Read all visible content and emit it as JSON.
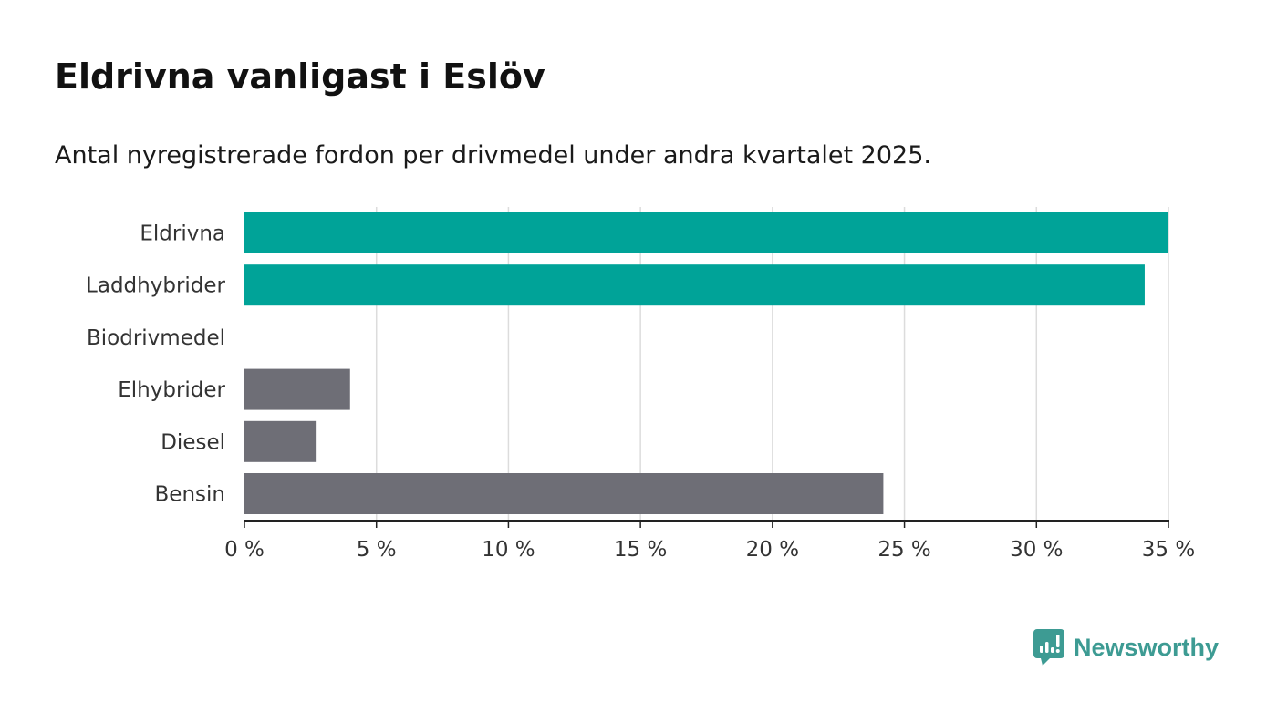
{
  "header": {
    "title": "Eldrivna vanligast i Eslöv",
    "subtitle": "Antal nyregistrerade fordon per drivmedel under andra kvartalet 2025."
  },
  "brand": {
    "name": "Newsworthy",
    "icon": "newsworthy-logo-icon",
    "color": "#3d9b93"
  },
  "chart_data": {
    "type": "bar",
    "orientation": "horizontal",
    "categories": [
      "Eldrivna",
      "Laddhybrider",
      "Biodrivmedel",
      "Elhybrider",
      "Diesel",
      "Bensin"
    ],
    "values": [
      35,
      34.1,
      0,
      4.0,
      2.7,
      24.2
    ],
    "colors": [
      "#00a398",
      "#00a398",
      "#6e6e76",
      "#6e6e76",
      "#6e6e76",
      "#6e6e76"
    ],
    "xlim": [
      0,
      35
    ],
    "xticks": [
      0,
      5,
      10,
      15,
      20,
      25,
      30,
      35
    ],
    "xtick_labels": [
      "0 %",
      "5 %",
      "10 %",
      "15 %",
      "20 %",
      "25 %",
      "30 %",
      "35 %"
    ],
    "grid": true
  }
}
